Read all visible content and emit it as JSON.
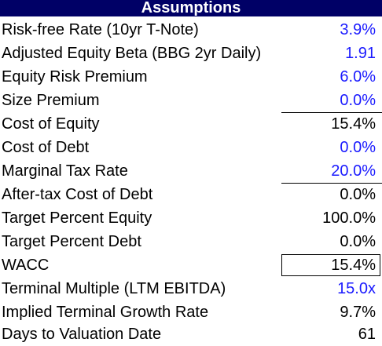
{
  "header": {
    "title": "Assumptions"
  },
  "colors": {
    "header_bg": "#000066",
    "input_text": "#1a1aff",
    "calc_text": "#000000"
  },
  "rows": [
    {
      "label": "Risk-free Rate (10yr T-Note)",
      "value": "3.9%",
      "kind": "input"
    },
    {
      "label": "Adjusted Equity Beta (BBG 2yr Daily)",
      "value": "1.91",
      "kind": "input"
    },
    {
      "label": "Equity Risk Premium",
      "value": "6.0%",
      "kind": "input"
    },
    {
      "label": "Size Premium",
      "value": "0.0%",
      "kind": "input"
    },
    {
      "label": "Cost of Equity",
      "value": "15.4%",
      "kind": "calc"
    },
    {
      "label": "Cost of Debt",
      "value": "0.0%",
      "kind": "input"
    },
    {
      "label": "Marginal Tax Rate",
      "value": "20.0%",
      "kind": "input"
    },
    {
      "label": "After-tax Cost of Debt",
      "value": "0.0%",
      "kind": "calc"
    },
    {
      "label": "Target Percent Equity",
      "value": "100.0%",
      "kind": "calc"
    },
    {
      "label": "Target Percent Debt",
      "value": "0.0%",
      "kind": "calc"
    },
    {
      "label": "WACC",
      "value": "15.4%",
      "kind": "calc"
    },
    {
      "label": "Terminal Multiple (LTM EBITDA)",
      "value": "15.0x",
      "kind": "input"
    },
    {
      "label": "Implied Terminal Growth Rate",
      "value": "9.7%",
      "kind": "calc"
    },
    {
      "label": "Days to Valuation Date",
      "value": "61",
      "kind": "calc"
    }
  ]
}
